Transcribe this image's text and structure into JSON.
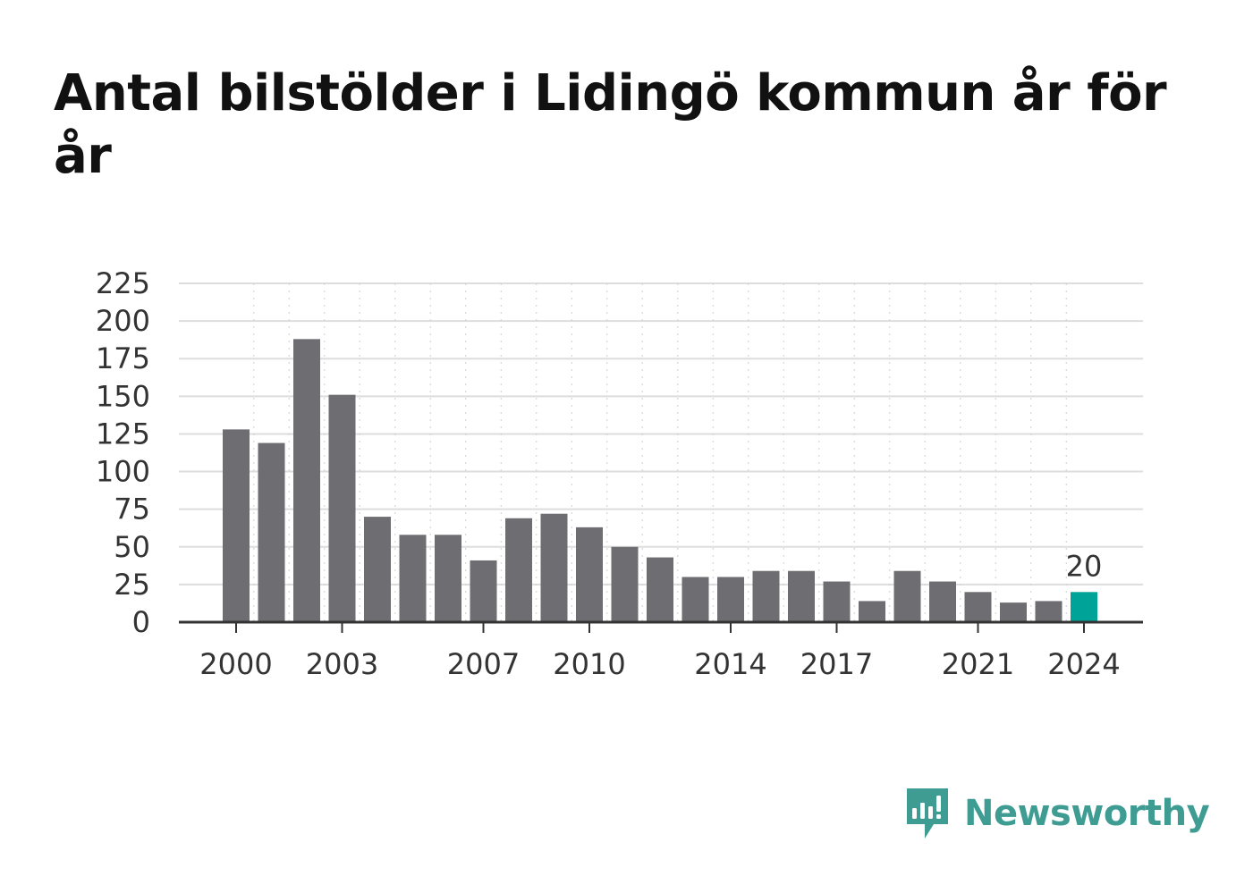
{
  "title": "Antal bilstölder i Lidingö kommun år för år",
  "brand": {
    "name": "Newsworthy",
    "icon": "newsworthy-bar-chart-icon",
    "color": "#3f9c93"
  },
  "colors": {
    "bar": "#6e6d72",
    "highlight": "#00a398",
    "grid": "#dddddd",
    "axis": "#333333"
  },
  "chart_data": {
    "type": "bar",
    "title": "Antal bilstölder i Lidingö kommun år för år",
    "xlabel": "",
    "ylabel": "",
    "categories": [
      2000,
      2001,
      2002,
      2003,
      2004,
      2005,
      2006,
      2007,
      2008,
      2009,
      2010,
      2011,
      2012,
      2013,
      2014,
      2015,
      2016,
      2017,
      2018,
      2019,
      2020,
      2021,
      2022,
      2023,
      2024
    ],
    "values": [
      128,
      119,
      188,
      151,
      70,
      58,
      58,
      41,
      69,
      72,
      63,
      50,
      43,
      30,
      30,
      34,
      34,
      27,
      14,
      34,
      27,
      20,
      13,
      14,
      20
    ],
    "x_tick_labels": [
      "2000",
      "2003",
      "2007",
      "2010",
      "2014",
      "2017",
      "2021",
      "2024"
    ],
    "y_ticks": [
      0,
      25,
      50,
      75,
      100,
      125,
      150,
      175,
      200,
      225
    ],
    "ylim": [
      0,
      225
    ],
    "grid": true,
    "highlight": {
      "category": 2024,
      "label": "20"
    }
  }
}
